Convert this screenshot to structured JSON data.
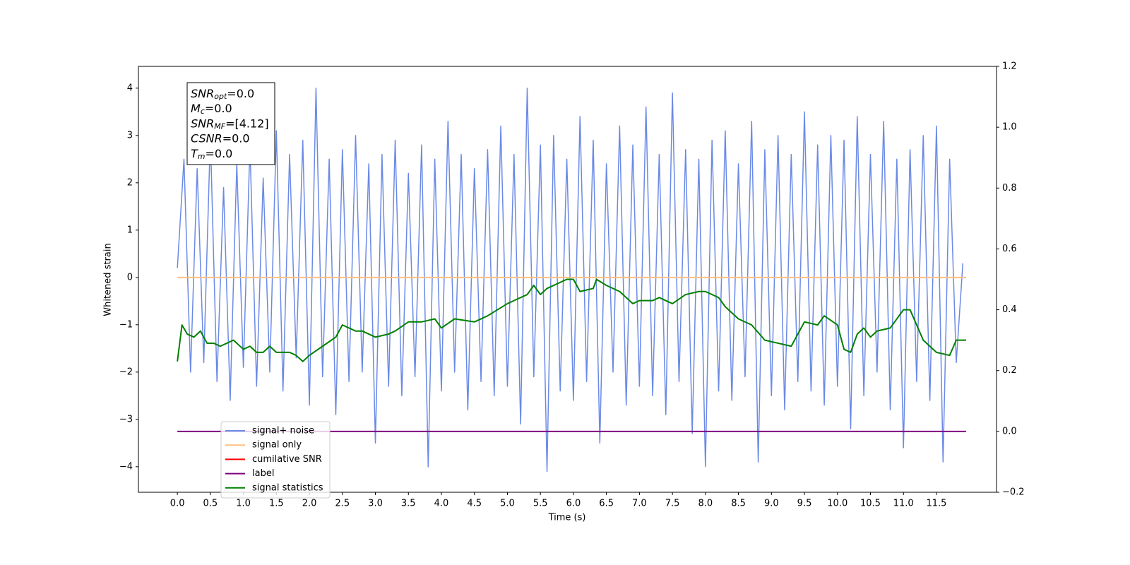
{
  "chart_data": {
    "type": "line",
    "xlabel": "Time (s)",
    "ylabel": "Whitened strain",
    "xlim": [
      -0.59,
      12.41
    ],
    "ylim": [
      -4.54,
      4.46
    ],
    "y2lim": [
      -0.2,
      1.2
    ],
    "xticks": [
      {
        "value": 0,
        "label": "0.0"
      },
      {
        "value": 0.5,
        "label": "0.5"
      },
      {
        "value": 1,
        "label": "1.0"
      },
      {
        "value": 1.5,
        "label": "1.5"
      },
      {
        "value": 2,
        "label": "2.0"
      },
      {
        "value": 2.5,
        "label": "2.5"
      },
      {
        "value": 3,
        "label": "3.0"
      },
      {
        "value": 3.5,
        "label": "3.5"
      },
      {
        "value": 4,
        "label": "4.0"
      },
      {
        "value": 4.5,
        "label": "4.5"
      },
      {
        "value": 5,
        "label": "5.0"
      },
      {
        "value": 5.5,
        "label": "5.5"
      },
      {
        "value": 6,
        "label": "6.0"
      },
      {
        "value": 6.5,
        "label": "6.5"
      },
      {
        "value": 7,
        "label": "7.0"
      },
      {
        "value": 7.5,
        "label": "7.5"
      },
      {
        "value": 8,
        "label": "8.0"
      },
      {
        "value": 8.5,
        "label": "8.5"
      },
      {
        "value": 9,
        "label": "9.0"
      },
      {
        "value": 9.5,
        "label": "9.5"
      },
      {
        "value": 10,
        "label": "10.0"
      },
      {
        "value": 10.5,
        "label": "10.5"
      },
      {
        "value": 11,
        "label": "11.0"
      },
      {
        "value": 11.5,
        "label": "11.5"
      }
    ],
    "yticks": [
      {
        "value": -4,
        "label": "−4"
      },
      {
        "value": -3,
        "label": "−3"
      },
      {
        "value": -2,
        "label": "−2"
      },
      {
        "value": -1,
        "label": "−1"
      },
      0,
      1,
      2,
      3,
      4
    ],
    "y2ticks": [
      {
        "value": -0.2,
        "label": "−0.2"
      },
      {
        "value": 0,
        "label": "0.0"
      },
      0.2,
      0.4,
      0.6,
      0.8,
      {
        "value": 1,
        "label": "1.0"
      },
      1.2
    ],
    "annotations": [
      {
        "main": "SNR",
        "sub": "opt",
        "text": "=0.0"
      },
      {
        "main": "M",
        "sub": "c",
        "text": "=0.0"
      },
      {
        "main": "SNR",
        "sub": "MF",
        "text": "=[4.12]"
      },
      {
        "main": "CSNR",
        "text": "=0.0"
      },
      {
        "main": "T",
        "sub": "m",
        "text": "=0.0"
      }
    ],
    "series": [
      {
        "name": "signal+ noise",
        "color": "#6b8ae6",
        "x": [
          0,
          0.1,
          0.2,
          0.3,
          0.4,
          0.5,
          0.6,
          0.7,
          0.8,
          0.9,
          1,
          1.1,
          1.2,
          1.3,
          1.4,
          1.5,
          1.6,
          1.7,
          1.8,
          1.9,
          2,
          2.1,
          2.2,
          2.3,
          2.4,
          2.5,
          2.6,
          2.7,
          2.8,
          2.9,
          3,
          3.1,
          3.2,
          3.3,
          3.4,
          3.5,
          3.6,
          3.7,
          3.8,
          3.9,
          4,
          4.1,
          4.2,
          4.3,
          4.4,
          4.5,
          4.6,
          4.7,
          4.8,
          4.9,
          5,
          5.1,
          5.2,
          5.3,
          5.4,
          5.5,
          5.6,
          5.7,
          5.8,
          5.9,
          6,
          6.1,
          6.2,
          6.3,
          6.4,
          6.5,
          6.6,
          6.7,
          6.8,
          6.9,
          7,
          7.1,
          7.2,
          7.3,
          7.4,
          7.5,
          7.6,
          7.7,
          7.8,
          7.9,
          8,
          8.1,
          8.2,
          8.3,
          8.4,
          8.5,
          8.6,
          8.7,
          8.8,
          8.9,
          9,
          9.1,
          9.2,
          9.3,
          9.4,
          9.5,
          9.6,
          9.7,
          9.8,
          9.9,
          10,
          10.1,
          10.2,
          10.3,
          10.4,
          10.5,
          10.6,
          10.7,
          10.8,
          10.9,
          11,
          11.1,
          11.2,
          11.3,
          11.4,
          11.5,
          11.6,
          11.7,
          11.8,
          11.9
        ],
        "values": [
          0.2,
          2.5,
          -2.0,
          2.3,
          -1.8,
          3.0,
          -2.2,
          1.9,
          -2.6,
          2.4,
          -1.9,
          2.8,
          -2.3,
          2.1,
          -2.0,
          3.1,
          -2.4,
          2.6,
          -1.7,
          2.9,
          -2.7,
          4.0,
          -2.1,
          2.5,
          -2.9,
          2.7,
          -2.2,
          3.0,
          -2.0,
          2.4,
          -3.5,
          2.6,
          -2.3,
          2.9,
          -2.5,
          2.2,
          -2.1,
          2.8,
          -4.0,
          2.5,
          -2.4,
          3.3,
          -2.0,
          2.6,
          -2.8,
          2.3,
          -2.2,
          2.7,
          -2.5,
          3.2,
          -2.3,
          2.6,
          -3.1,
          4.0,
          -2.1,
          2.8,
          -4.1,
          3.0,
          -2.4,
          2.5,
          -2.6,
          3.4,
          -2.2,
          2.9,
          -3.5,
          2.4,
          -2.0,
          3.2,
          -2.7,
          2.8,
          -2.3,
          3.6,
          -2.5,
          2.6,
          -2.9,
          3.9,
          -2.2,
          2.7,
          -3.3,
          2.5,
          -4.0,
          2.9,
          -2.4,
          3.1,
          -2.6,
          2.4,
          -2.1,
          3.3,
          -3.9,
          2.7,
          -2.5,
          3.0,
          -2.8,
          2.6,
          -2.2,
          3.5,
          -2.4,
          2.8,
          -2.7,
          3.0,
          -2.3,
          2.9,
          -3.2,
          3.4,
          -2.5,
          2.6,
          -2.0,
          3.3,
          -2.8,
          2.5,
          -3.6,
          2.7,
          -2.2,
          3.0,
          -2.6,
          3.2,
          -3.9,
          2.5,
          -1.8,
          0.3
        ]
      },
      {
        "name": "signal only",
        "color": "#ffbf7f",
        "x": [
          0,
          11.95
        ],
        "values": [
          0,
          0
        ]
      },
      {
        "name": "cumilative SNR",
        "color": "#ff0000"
      },
      {
        "name": "label",
        "color": "#800080",
        "axis": "y2",
        "x": [
          0,
          11.95
        ],
        "values": [
          0,
          0
        ]
      },
      {
        "name": "signal statistics",
        "color": "#008000",
        "axis": "y2",
        "x": [
          0,
          0.07,
          0.15,
          0.25,
          0.35,
          0.45,
          0.55,
          0.65,
          0.75,
          0.85,
          1.0,
          1.1,
          1.2,
          1.3,
          1.4,
          1.5,
          1.6,
          1.7,
          1.8,
          1.9,
          2.0,
          2.2,
          2.4,
          2.5,
          2.7,
          2.8,
          3.0,
          3.2,
          3.3,
          3.5,
          3.7,
          3.9,
          4.0,
          4.2,
          4.5,
          4.7,
          5.0,
          5.1,
          5.3,
          5.4,
          5.5,
          5.6,
          5.8,
          5.9,
          6.0,
          6.1,
          6.3,
          6.35,
          6.5,
          6.7,
          6.9,
          7.0,
          7.2,
          7.3,
          7.5,
          7.7,
          7.9,
          8.0,
          8.2,
          8.3,
          8.5,
          8.7,
          8.9,
          9.1,
          9.3,
          9.5,
          9.7,
          9.8,
          10.0,
          10.1,
          10.2,
          10.3,
          10.4,
          10.5,
          10.6,
          10.8,
          11.0,
          11.1,
          11.3,
          11.5,
          11.7,
          11.8,
          11.95
        ],
        "values": [
          0.23,
          0.35,
          0.32,
          0.31,
          0.33,
          0.29,
          0.29,
          0.28,
          0.29,
          0.3,
          0.27,
          0.28,
          0.26,
          0.26,
          0.28,
          0.26,
          0.26,
          0.26,
          0.25,
          0.23,
          0.25,
          0.28,
          0.31,
          0.35,
          0.33,
          0.33,
          0.31,
          0.32,
          0.33,
          0.36,
          0.36,
          0.37,
          0.34,
          0.37,
          0.36,
          0.38,
          0.42,
          0.43,
          0.45,
          0.48,
          0.45,
          0.47,
          0.49,
          0.5,
          0.5,
          0.46,
          0.47,
          0.5,
          0.48,
          0.46,
          0.42,
          0.43,
          0.43,
          0.44,
          0.42,
          0.45,
          0.46,
          0.46,
          0.44,
          0.41,
          0.37,
          0.35,
          0.3,
          0.29,
          0.28,
          0.36,
          0.35,
          0.38,
          0.35,
          0.27,
          0.26,
          0.32,
          0.34,
          0.31,
          0.33,
          0.34,
          0.4,
          0.4,
          0.3,
          0.26,
          0.25,
          0.3,
          0.3
        ]
      }
    ]
  }
}
